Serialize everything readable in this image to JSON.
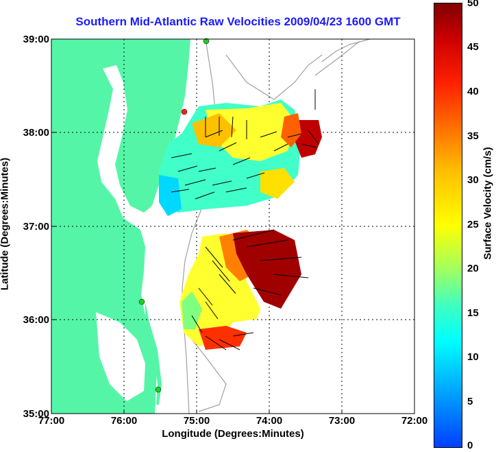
{
  "title": "Southern Mid-Atlantic Raw Velocities 2009/04/23 1600 GMT",
  "axes": {
    "xlabel": "Longitude (Degrees:Minutes)",
    "ylabel": "Latitude (Degrees:Minutes)",
    "xticks": [
      "77:00",
      "76:00",
      "75:00",
      "74:00",
      "73:00",
      "72:00"
    ],
    "yticks": [
      "39:00",
      "38:00",
      "37:00",
      "36:00",
      "35:00"
    ]
  },
  "colorbar": {
    "label": "Surface Velocity (cm/s)",
    "ticks": [
      "50",
      "45",
      "40",
      "35",
      "30",
      "25",
      "20",
      "15",
      "10",
      "5",
      "0"
    ],
    "colors": {
      "land": "#55f5a8",
      "coast_contour": "#a0a0a0",
      "station": "#20d020",
      "station_alt": "#ff2020"
    }
  }
}
